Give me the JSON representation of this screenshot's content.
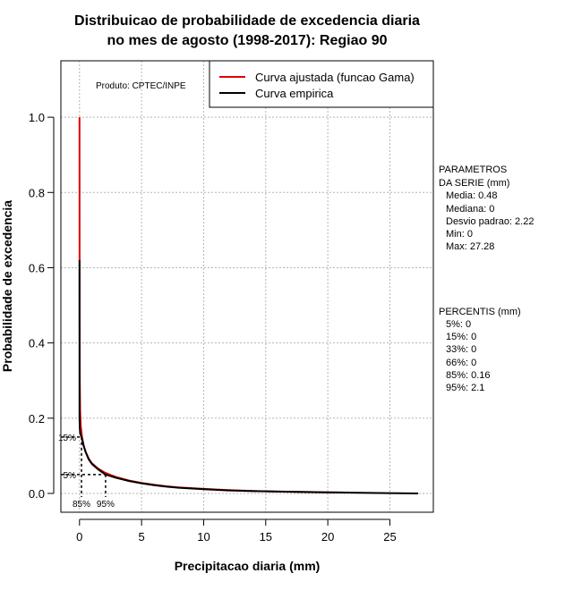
{
  "chart_data": {
    "type": "line",
    "title_line1": "Distribuicao de probabilidade de excedencia diaria",
    "title_line2": "no mes de agosto (1998-2017): Regiao 90",
    "xlabel": "Precipitacao diaria (mm)",
    "ylabel": "Probabilidade de excedencia",
    "xlim": [
      -1.5,
      28.5
    ],
    "ylim": [
      -0.05,
      1.15
    ],
    "xticks": [
      0,
      5,
      10,
      15,
      20,
      25
    ],
    "yticks": [
      0.0,
      0.2,
      0.4,
      0.6,
      0.8,
      1.0
    ],
    "xtick_labels": [
      "0",
      "5",
      "10",
      "15",
      "20",
      "25"
    ],
    "ytick_labels": [
      "0.0",
      "0.2",
      "0.4",
      "0.6",
      "0.8",
      "1.0"
    ],
    "grid": true,
    "product_label": "Produto: CPTEC/INPE",
    "legend": {
      "position": "top-right",
      "entries": [
        {
          "label": "Curva ajustada (funcao Gama)",
          "color": "#e00000"
        },
        {
          "label": "Curva empirica",
          "color": "#000000"
        }
      ]
    },
    "series": [
      {
        "name": "Curva ajustada (funcao Gama)",
        "color": "#e00000",
        "x": [
          0.0,
          0.005,
          0.02,
          0.05,
          0.1,
          0.2,
          0.35,
          0.5,
          0.75,
          1.0,
          1.5,
          2.0,
          2.5,
          3.0,
          4.0,
          5.0,
          6.0,
          7.0,
          8.0,
          10.0,
          12.0,
          14.0,
          16.0,
          18.0,
          20.0,
          21.5
        ],
        "y": [
          1.0,
          0.5,
          0.3,
          0.22,
          0.18,
          0.15,
          0.125,
          0.11,
          0.092,
          0.08,
          0.066,
          0.056,
          0.049,
          0.043,
          0.034,
          0.028,
          0.023,
          0.019,
          0.016,
          0.012,
          0.009,
          0.0065,
          0.005,
          0.0035,
          0.0025,
          0.002
        ]
      },
      {
        "name": "Curva empirica",
        "color": "#000000",
        "x": [
          0.0,
          0.0,
          0.02,
          0.05,
          0.1,
          0.16,
          0.3,
          0.5,
          0.75,
          1.0,
          1.5,
          2.1,
          2.5,
          3.0,
          4.0,
          5.0,
          6.0,
          7.0,
          8.0,
          10.0,
          12.0,
          14.0,
          16.0,
          18.0,
          20.0,
          22.0,
          24.0,
          27.28
        ],
        "y": [
          0.62,
          0.2,
          0.175,
          0.16,
          0.155,
          0.15,
          0.13,
          0.11,
          0.09,
          0.078,
          0.064,
          0.05,
          0.046,
          0.041,
          0.033,
          0.027,
          0.022,
          0.018,
          0.015,
          0.011,
          0.008,
          0.006,
          0.005,
          0.004,
          0.003,
          0.002,
          0.001,
          0.0
        ]
      }
    ],
    "percentile_markers": [
      {
        "label_y": "15%",
        "label_x": "85%",
        "x": 0.16,
        "y": 0.15
      },
      {
        "label_y": "5%",
        "label_x": "95%",
        "x": 2.1,
        "y": 0.05
      }
    ]
  },
  "side_panel": {
    "params_title_1": "PARAMETROS",
    "params_title_2": "DA SERIE (mm)",
    "params": [
      "Media: 0.48",
      "Mediana: 0",
      "Desvio padrao: 2.22",
      "Min: 0",
      "Max: 27.28"
    ],
    "percentis_title": "PERCENTIS (mm)",
    "percentis": [
      "5%: 0",
      "15%: 0",
      "33%: 0",
      "66%: 0",
      "85%: 0.16",
      "95%: 2.1"
    ]
  }
}
